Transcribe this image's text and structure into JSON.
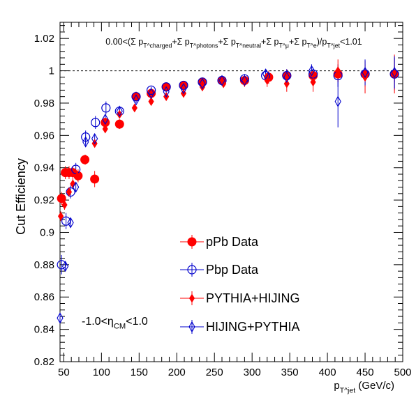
{
  "chart_data": {
    "type": "scatter",
    "title": "0.00<(Σ p_T^charged+Σ p_T^photons+Σ p_T^neutral+Σ p_T^μ+Σ p_T^e)/p_T^jet<1.01",
    "xlabel": "p_T^jet (GeV/c)",
    "ylabel": "Cut Efficiency",
    "annotation": "-1.0<η_CM<1.0",
    "xlim": [
      45,
      500
    ],
    "ylim": [
      0.82,
      1.03
    ],
    "x_ticks": [
      50,
      100,
      150,
      200,
      250,
      300,
      350,
      400,
      450,
      500
    ],
    "y_ticks": [
      0.82,
      0.84,
      0.86,
      0.88,
      0.9,
      0.92,
      0.94,
      0.96,
      0.98,
      1,
      1.02
    ],
    "reference_line": 1.0,
    "grid": false,
    "legend_position": "bottom-center",
    "series": [
      {
        "name": "pPb Data",
        "marker": "filled-circle",
        "color": "#ff0000",
        "x": [
          47,
          52,
          57,
          62,
          69,
          78,
          91,
          105,
          124,
          146,
          166,
          186,
          209,
          234,
          260,
          290,
          322,
          346,
          381,
          414,
          450,
          489
        ],
        "y": [
          0.921,
          0.937,
          0.937,
          0.937,
          0.935,
          0.945,
          0.933,
          0.968,
          0.967,
          0.984,
          0.986,
          0.99,
          0.991,
          0.993,
          0.994,
          0.994,
          0.996,
          0.997,
          0.997,
          0.998,
          0.998,
          0.998
        ],
        "err": [
          0.004,
          0.004,
          0.004,
          0.004,
          0.004,
          0.003,
          0.005,
          0.003,
          0.003,
          0.003,
          0.002,
          0.002,
          0.002,
          0.002,
          0.002,
          0.003,
          0.004,
          0.004,
          0.004,
          0.005,
          0.006,
          0.005
        ]
      },
      {
        "name": "Pbp Data",
        "marker": "open-circle",
        "color": "#0000cc",
        "x": [
          47,
          53,
          59,
          66,
          79,
          92,
          106,
          124,
          146,
          166,
          186,
          209,
          234,
          260,
          290,
          318,
          346,
          381,
          414,
          450,
          489
        ],
        "y": [
          0.88,
          0.907,
          0.925,
          0.939,
          0.959,
          0.968,
          0.977,
          0.975,
          0.984,
          0.988,
          0.99,
          0.991,
          0.993,
          0.994,
          0.995,
          0.997,
          0.997,
          0.998,
          0.997,
          0.998,
          0.998
        ],
        "err": [
          0.006,
          0.005,
          0.004,
          0.004,
          0.004,
          0.004,
          0.004,
          0.003,
          0.003,
          0.002,
          0.002,
          0.002,
          0.002,
          0.002,
          0.003,
          0.003,
          0.004,
          0.004,
          0.007,
          0.008,
          0.01
        ]
      },
      {
        "name": "PYTHIA+HIJING",
        "marker": "filled-diamond",
        "color": "#ff0000",
        "x": [
          46,
          51,
          57,
          62,
          68,
          79,
          91,
          105,
          124,
          144,
          166,
          186,
          209,
          234,
          262,
          290,
          320,
          346,
          381,
          414,
          450,
          489
        ],
        "y": [
          0.91,
          0.917,
          0.925,
          0.93,
          0.935,
          0.945,
          0.955,
          0.964,
          0.973,
          0.977,
          0.981,
          0.984,
          0.986,
          0.99,
          0.992,
          0.993,
          0.994,
          0.992,
          0.993,
          1.0,
          0.996,
          0.998
        ],
        "err": [
          0.003,
          0.003,
          0.003,
          0.003,
          0.003,
          0.003,
          0.002,
          0.002,
          0.002,
          0.002,
          0.002,
          0.002,
          0.002,
          0.002,
          0.002,
          0.003,
          0.004,
          0.005,
          0.006,
          0.007,
          0.01,
          0.012
        ]
      },
      {
        "name": "HIJING+PYTHIA",
        "marker": "open-diamond",
        "color": "#0000cc",
        "x": [
          45,
          52,
          59,
          66,
          79,
          91,
          105,
          124,
          146,
          166,
          186,
          209,
          234,
          260,
          290,
          318,
          346,
          379,
          414,
          450,
          489
        ],
        "y": [
          0.847,
          0.879,
          0.906,
          0.928,
          0.956,
          0.958,
          0.97,
          0.975,
          0.982,
          0.986,
          0.987,
          0.989,
          0.992,
          0.994,
          0.994,
          0.998,
          0.996,
          1.0,
          0.981,
          0.999,
          0.999
        ],
        "err": [
          0.003,
          0.003,
          0.003,
          0.003,
          0.003,
          0.003,
          0.003,
          0.003,
          0.002,
          0.002,
          0.002,
          0.002,
          0.002,
          0.002,
          0.002,
          0.003,
          0.004,
          0.004,
          0.016,
          0.008,
          0.01
        ]
      }
    ]
  }
}
